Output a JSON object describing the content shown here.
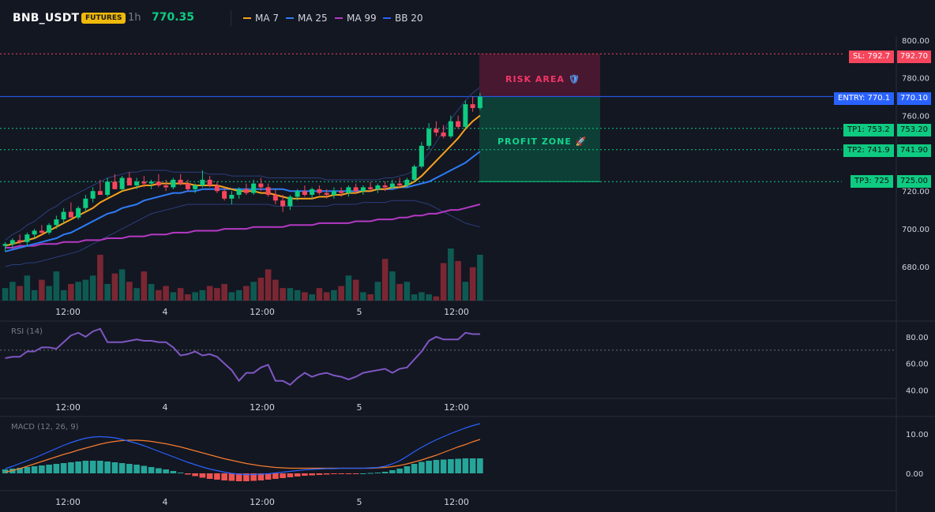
{
  "header": {
    "symbol": "BNB_USDT",
    "badge": "FUTURES",
    "timeframe": "1h",
    "price": "770.35"
  },
  "legend": [
    {
      "label": "MA 7",
      "color": "#f7a21b"
    },
    {
      "label": "MA 25",
      "color": "#2e7bf6"
    },
    {
      "label": "MA 99",
      "color": "#b538c4"
    },
    {
      "label": "BB 20",
      "color": "#2962ff"
    }
  ],
  "colors": {
    "up": "#0ecb81",
    "down": "#f6465d",
    "vol_up": "#0e5a52",
    "vol_down": "#7a2733",
    "sl": "#f6465d",
    "entry": "#2962ff",
    "tp": "#0ecb81"
  },
  "levels": {
    "sl": {
      "tag": "SL: 792.7",
      "axis": "792.70"
    },
    "entry": {
      "tag": "ENTRY: 770.1",
      "axis": "770.10"
    },
    "tp1": {
      "tag": "TP1: 753.2",
      "axis": "753.20"
    },
    "tp2": {
      "tag": "TP2: 741.9",
      "axis": "741.90"
    },
    "tp3": {
      "tag": "TP3: 725",
      "axis": "725.00"
    }
  },
  "zones": {
    "risk_label": "RISK AREA",
    "profit_label": "PROFIT ZONE",
    "risk_icon": "shield-icon",
    "profit_icon": "rocket-icon"
  },
  "panes": {
    "rsi_title": "RSI (14)",
    "macd_title": "MACD (12, 26, 9)"
  },
  "chart_data": [
    {
      "type": "candlestick",
      "title": "BNB_USDT 1h",
      "x_ticks": [
        "12:00",
        "4",
        "12:00",
        "5",
        "12:00"
      ],
      "y_ticks": [
        "800.00",
        "780.00",
        "760.00",
        "740.00",
        "720.00",
        "700.00",
        "680.00"
      ],
      "ylim": [
        662,
        802
      ],
      "ohlc": [
        [
          691,
          693,
          688,
          692
        ],
        [
          692,
          695,
          690,
          694
        ],
        [
          694,
          697,
          692,
          693
        ],
        [
          693,
          698,
          691,
          697
        ],
        [
          697,
          700,
          695,
          699
        ],
        [
          699,
          702,
          697,
          698
        ],
        [
          698,
          703,
          697,
          702
        ],
        [
          702,
          707,
          700,
          705
        ],
        [
          705,
          711,
          703,
          709
        ],
        [
          709,
          714,
          707,
          706
        ],
        [
          706,
          712,
          705,
          711
        ],
        [
          711,
          718,
          709,
          716
        ],
        [
          716,
          722,
          714,
          720
        ],
        [
          720,
          726,
          718,
          718
        ],
        [
          718,
          727,
          717,
          725
        ],
        [
          725,
          729,
          722,
          721
        ],
        [
          721,
          728,
          720,
          727
        ],
        [
          727,
          730,
          724,
          723
        ],
        [
          723,
          727,
          721,
          725
        ],
        [
          725,
          728,
          722,
          724
        ],
        [
          724,
          726,
          721,
          725
        ],
        [
          725,
          729,
          722,
          723
        ],
        [
          723,
          726,
          720,
          722
        ],
        [
          722,
          727,
          721,
          726
        ],
        [
          726,
          729,
          723,
          724
        ],
        [
          724,
          726,
          720,
          721
        ],
        [
          721,
          724,
          719,
          723
        ],
        [
          723,
          731,
          722,
          726
        ],
        [
          726,
          728,
          722,
          723
        ],
        [
          723,
          725,
          719,
          720
        ],
        [
          720,
          722,
          715,
          716
        ],
        [
          716,
          720,
          713,
          718
        ],
        [
          718,
          722,
          716,
          721
        ],
        [
          721,
          724,
          718,
          719
        ],
        [
          719,
          726,
          718,
          724
        ],
        [
          724,
          727,
          720,
          722
        ],
        [
          722,
          724,
          717,
          718
        ],
        [
          718,
          721,
          713,
          715
        ],
        [
          715,
          718,
          709,
          712
        ],
        [
          712,
          718,
          710,
          717
        ],
        [
          717,
          721,
          715,
          720
        ],
        [
          720,
          723,
          717,
          718
        ],
        [
          718,
          722,
          716,
          721
        ],
        [
          721,
          723,
          718,
          719
        ],
        [
          719,
          721,
          716,
          718
        ],
        [
          718,
          722,
          716,
          720
        ],
        [
          720,
          722,
          717,
          719
        ],
        [
          719,
          723,
          717,
          722
        ],
        [
          722,
          724,
          719,
          720
        ],
        [
          720,
          723,
          718,
          722
        ],
        [
          722,
          725,
          720,
          721
        ],
        [
          721,
          724,
          719,
          723
        ],
        [
          723,
          725,
          720,
          722
        ],
        [
          722,
          726,
          721,
          724
        ],
        [
          724,
          727,
          722,
          723
        ],
        [
          723,
          727,
          722,
          726
        ],
        [
          726,
          734,
          725,
          733
        ],
        [
          733,
          746,
          732,
          744
        ],
        [
          744,
          756,
          742,
          753
        ],
        [
          753,
          757,
          749,
          751
        ],
        [
          751,
          755,
          748,
          749
        ],
        [
          749,
          760,
          748,
          757
        ],
        [
          757,
          760,
          753,
          754
        ],
        [
          754,
          768,
          753,
          766
        ],
        [
          766,
          770,
          762,
          764
        ],
        [
          764,
          772,
          763,
          770
        ]
      ],
      "ma7": [
        691,
        692,
        693,
        694,
        695,
        697,
        699,
        701,
        703,
        705,
        707,
        709,
        711,
        714,
        716,
        718,
        720,
        721,
        722,
        723,
        723,
        724,
        724,
        724,
        724,
        724,
        723,
        723,
        723,
        723,
        722,
        721,
        720,
        720,
        720,
        719,
        719,
        718,
        717,
        716,
        716,
        716,
        716,
        717,
        717,
        718,
        718,
        719,
        719,
        720,
        720,
        721,
        721,
        722,
        722,
        723,
        725,
        728,
        732,
        736,
        740,
        744,
        748,
        753,
        757,
        760
      ],
      "ma25": [
        688,
        689,
        690,
        691,
        692,
        693,
        694,
        695,
        697,
        698,
        700,
        702,
        704,
        706,
        708,
        709,
        711,
        712,
        713,
        715,
        716,
        717,
        718,
        719,
        719,
        720,
        720,
        721,
        721,
        721,
        721,
        721,
        721,
        721,
        721,
        721,
        721,
        721,
        721,
        720,
        720,
        720,
        720,
        720,
        720,
        720,
        720,
        720,
        720,
        720,
        720,
        721,
        721,
        721,
        722,
        722,
        723,
        724,
        725,
        727,
        729,
        731,
        733,
        735,
        738,
        741
      ],
      "ma99": [
        690,
        690,
        691,
        691,
        691,
        692,
        692,
        692,
        693,
        693,
        693,
        694,
        694,
        694,
        695,
        695,
        695,
        696,
        696,
        696,
        697,
        697,
        697,
        698,
        698,
        698,
        699,
        699,
        699,
        699,
        700,
        700,
        700,
        700,
        701,
        701,
        701,
        701,
        701,
        702,
        702,
        702,
        702,
        703,
        703,
        703,
        703,
        703,
        704,
        704,
        704,
        705,
        705,
        705,
        706,
        706,
        707,
        707,
        708,
        708,
        709,
        710,
        710,
        711,
        712,
        713
      ],
      "bb_upper": [
        694,
        697,
        699,
        702,
        704,
        707,
        710,
        712,
        715,
        717,
        719,
        721,
        723,
        725,
        727,
        728,
        729,
        730,
        730,
        731,
        731,
        731,
        731,
        730,
        730,
        730,
        730,
        730,
        729,
        729,
        729,
        728,
        728,
        728,
        728,
        728,
        727,
        727,
        727,
        727,
        727,
        727,
        727,
        727,
        726,
        726,
        726,
        726,
        726,
        726,
        726,
        726,
        727,
        727,
        728,
        729,
        731,
        735,
        740,
        746,
        752,
        758,
        763,
        768,
        772,
        775
      ],
      "bb_lower": [
        680,
        681,
        681,
        682,
        682,
        683,
        684,
        685,
        686,
        687,
        688,
        690,
        692,
        694,
        696,
        698,
        700,
        702,
        704,
        706,
        708,
        709,
        710,
        711,
        712,
        713,
        713,
        713,
        713,
        713,
        713,
        713,
        713,
        713,
        713,
        713,
        713,
        712,
        712,
        712,
        712,
        712,
        712,
        712,
        712,
        713,
        713,
        713,
        713,
        714,
        714,
        714,
        714,
        715,
        715,
        715,
        715,
        714,
        713,
        711,
        709,
        707,
        705,
        703,
        702,
        701
      ],
      "volume": [
        6,
        9,
        7,
        12,
        5,
        10,
        7,
        14,
        5,
        8,
        9,
        10,
        12,
        22,
        8,
        13,
        15,
        9,
        6,
        14,
        8,
        5,
        7,
        4,
        6,
        3,
        4,
        5,
        7,
        6,
        8,
        4,
        5,
        7,
        9,
        11,
        15,
        10,
        6,
        6,
        5,
        4,
        3,
        6,
        4,
        5,
        7,
        12,
        10,
        4,
        3,
        9,
        20,
        14,
        8,
        9,
        3,
        4,
        3,
        2,
        18,
        25,
        19,
        9,
        16,
        22
      ]
    },
    {
      "type": "line",
      "title": "RSI (14)",
      "y_ticks": [
        "80.00",
        "60.00",
        "40.00"
      ],
      "ylim": [
        35,
        90
      ],
      "reference_line": 70,
      "values": [
        64,
        65,
        65,
        69,
        69,
        72,
        72,
        71,
        76,
        81,
        83,
        80,
        84,
        86,
        76,
        76,
        76,
        77,
        78,
        77,
        77,
        76,
        76,
        72,
        66,
        67,
        69,
        66,
        67,
        65,
        60,
        55,
        47,
        53,
        53,
        57,
        59,
        47,
        47,
        44,
        49,
        53,
        50,
        52,
        53,
        51,
        50,
        48,
        50,
        53,
        54,
        55,
        56,
        53,
        56,
        57,
        63,
        69,
        77,
        80,
        78,
        78,
        78,
        83,
        82,
        82
      ]
    },
    {
      "type": "bar+line",
      "title": "MACD (12, 26, 9)",
      "y_ticks": [
        "10.00",
        "0.00"
      ],
      "ylim": [
        -4,
        14
      ],
      "histogram": [
        1.0,
        1.2,
        1.4,
        1.6,
        1.8,
        2.0,
        2.2,
        2.4,
        2.6,
        2.8,
        3.0,
        3.2,
        3.2,
        3.2,
        3.0,
        2.8,
        2.6,
        2.4,
        2.2,
        1.9,
        1.6,
        1.3,
        1.0,
        0.6,
        0.2,
        -0.3,
        -0.7,
        -1.1,
        -1.4,
        -1.6,
        -1.8,
        -1.9,
        -2.0,
        -2.0,
        -1.9,
        -1.8,
        -1.6,
        -1.4,
        -1.2,
        -1.0,
        -0.8,
        -0.6,
        -0.5,
        -0.4,
        -0.3,
        -0.2,
        -0.2,
        -0.1,
        -0.1,
        0.0,
        0.1,
        0.2,
        0.4,
        0.8,
        1.2,
        1.8,
        2.4,
        2.9,
        3.2,
        3.4,
        3.5,
        3.6,
        3.7,
        3.8,
        3.8,
        3.8
      ],
      "macd": [
        1.2,
        1.8,
        2.5,
        3.2,
        3.9,
        4.7,
        5.5,
        6.3,
        7.1,
        7.8,
        8.4,
        8.9,
        9.2,
        9.3,
        9.2,
        9.0,
        8.6,
        8.1,
        7.6,
        7.0,
        6.3,
        5.6,
        4.9,
        4.2,
        3.5,
        2.8,
        2.2,
        1.6,
        1.1,
        0.7,
        0.3,
        0.0,
        -0.2,
        -0.3,
        -0.3,
        -0.2,
        -0.1,
        0.1,
        0.3,
        0.5,
        0.7,
        0.9,
        1.0,
        1.1,
        1.2,
        1.2,
        1.3,
        1.3,
        1.3,
        1.3,
        1.4,
        1.5,
        1.8,
        2.4,
        3.2,
        4.3,
        5.5,
        6.6,
        7.6,
        8.5,
        9.3,
        10.1,
        10.8,
        11.5,
        12.1,
        12.6
      ],
      "signal": [
        0.3,
        0.7,
        1.2,
        1.8,
        2.4,
        3.0,
        3.6,
        4.2,
        4.8,
        5.3,
        5.9,
        6.4,
        6.9,
        7.4,
        7.8,
        8.1,
        8.3,
        8.4,
        8.4,
        8.3,
        8.1,
        7.8,
        7.5,
        7.1,
        6.7,
        6.2,
        5.7,
        5.2,
        4.7,
        4.2,
        3.7,
        3.3,
        2.9,
        2.5,
        2.2,
        1.9,
        1.7,
        1.5,
        1.4,
        1.3,
        1.3,
        1.3,
        1.3,
        1.3,
        1.3,
        1.3,
        1.3,
        1.3,
        1.3,
        1.3,
        1.3,
        1.4,
        1.5,
        1.7,
        2.0,
        2.4,
        2.9,
        3.4,
        4.0,
        4.6,
        5.3,
        6.0,
        6.7,
        7.3,
        8.0,
        8.6
      ]
    }
  ]
}
